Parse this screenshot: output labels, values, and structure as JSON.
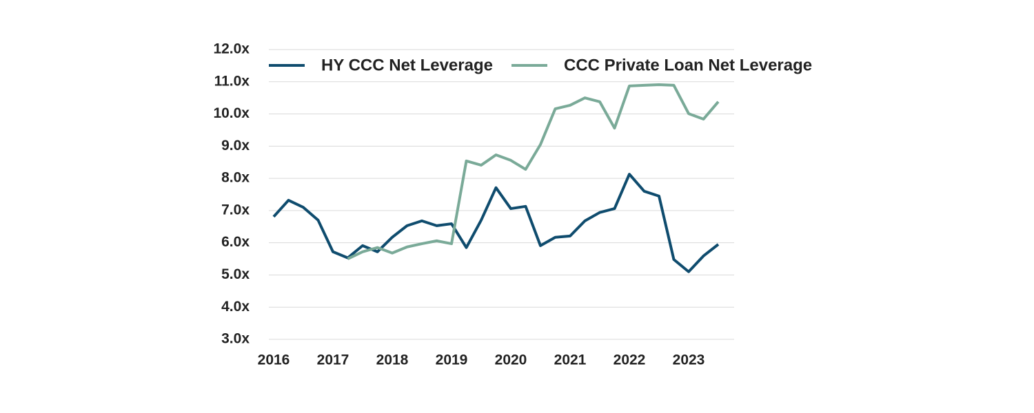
{
  "chart_data": {
    "type": "line",
    "categories": [
      "2016",
      null,
      null,
      null,
      "2017",
      null,
      null,
      null,
      "2018",
      null,
      null,
      null,
      "2019",
      null,
      null,
      null,
      "2020",
      null,
      null,
      null,
      "2021",
      null,
      null,
      null,
      "2022",
      null,
      null,
      null,
      "2023",
      null,
      null
    ],
    "series": [
      {
        "name": "HY CCC Net Leverage",
        "color": "#0f4c6e",
        "values": [
          6.81,
          7.32,
          7.1,
          6.7,
          5.72,
          5.53,
          5.91,
          5.72,
          6.17,
          6.53,
          6.68,
          6.53,
          6.59,
          5.85,
          6.7,
          7.71,
          7.06,
          7.13,
          5.91,
          6.17,
          6.21,
          6.68,
          6.94,
          7.06,
          8.13,
          7.6,
          7.45,
          5.48,
          5.1,
          5.59,
          5.95
        ]
      },
      {
        "name": "CCC Private Loan Net Leverage",
        "color": "#7aaa98",
        "values": [
          null,
          null,
          null,
          null,
          null,
          5.5,
          5.72,
          5.85,
          5.68,
          5.87,
          5.97,
          6.06,
          5.97,
          8.54,
          8.41,
          8.73,
          8.56,
          8.28,
          9.05,
          10.16,
          10.27,
          10.5,
          10.38,
          9.56,
          10.87,
          10.89,
          10.91,
          10.89,
          10.01,
          9.84,
          10.38
        ]
      }
    ],
    "ylim": [
      3,
      12
    ],
    "yticks": [
      {
        "value": 3,
        "label": "3.0x"
      },
      {
        "value": 4,
        "label": "4.0x"
      },
      {
        "value": 5,
        "label": "5.0x"
      },
      {
        "value": 6,
        "label": "6.0x"
      },
      {
        "value": 7,
        "label": "7.0x"
      },
      {
        "value": 8,
        "label": "8.0x"
      },
      {
        "value": 9,
        "label": "9.0x"
      },
      {
        "value": 10,
        "label": "10.0x"
      },
      {
        "value": 11,
        "label": "11.0x"
      },
      {
        "value": 12,
        "label": "12.0x"
      }
    ],
    "grid": true,
    "legend": "top"
  }
}
